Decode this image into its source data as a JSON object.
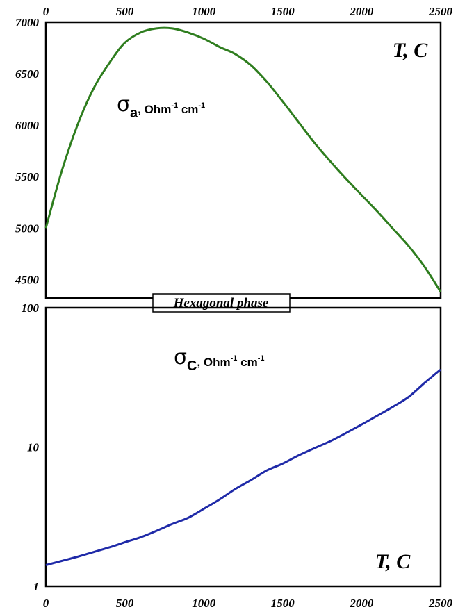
{
  "figure_label": "Hexagonal phase",
  "chart_data": [
    {
      "type": "line",
      "panel": "top",
      "series_label": {
        "symbol": "σ",
        "subscript": "a",
        "unit": ", Ohm",
        "sup1": "-1",
        "unit2": " cm",
        "sup2": "-1"
      },
      "xlabel": "T, C",
      "x_ticks": [
        "0",
        "500",
        "1000",
        "1500",
        "2000",
        "2500"
      ],
      "y_ticks": [
        "4500",
        "5000",
        "5500",
        "6000",
        "6500",
        "7000"
      ],
      "xlim": [
        0,
        2500
      ],
      "ylim": [
        4320,
        7000
      ],
      "y_scale": "linear",
      "color": "#2e7d1e",
      "x": [
        0,
        100,
        200,
        300,
        400,
        500,
        600,
        700,
        800,
        900,
        1000,
        1100,
        1200,
        1300,
        1400,
        1500,
        1600,
        1700,
        1800,
        1900,
        2000,
        2100,
        2200,
        2300,
        2400,
        2500
      ],
      "y": [
        5000,
        5550,
        6000,
        6350,
        6600,
        6800,
        6900,
        6940,
        6940,
        6900,
        6840,
        6760,
        6690,
        6580,
        6420,
        6230,
        6030,
        5830,
        5650,
        5480,
        5320,
        5160,
        4990,
        4820,
        4620,
        4380
      ]
    },
    {
      "type": "line",
      "panel": "bottom",
      "series_label": {
        "symbol": "σ",
        "subscript": "C",
        "unit": ", Ohm",
        "sup1": "-1",
        "unit2": " cm",
        "sup2": "-1"
      },
      "xlabel": "T, C",
      "x_ticks": [
        "0",
        "500",
        "1000",
        "1500",
        "2000",
        "2500"
      ],
      "y_ticks": [
        "1",
        "10",
        "100"
      ],
      "xlim": [
        0,
        2500
      ],
      "ylim": [
        1,
        100
      ],
      "y_scale": "log",
      "color": "#1f2aa8",
      "x": [
        0,
        100,
        200,
        300,
        400,
        500,
        600,
        700,
        800,
        900,
        1000,
        1100,
        1200,
        1300,
        1400,
        1500,
        1600,
        1700,
        1800,
        1900,
        2000,
        2100,
        2200,
        2300,
        2400,
        2500
      ],
      "y": [
        1.42,
        1.52,
        1.63,
        1.76,
        1.9,
        2.07,
        2.25,
        2.5,
        2.8,
        3.1,
        3.6,
        4.2,
        5.0,
        5.8,
        6.8,
        7.6,
        8.7,
        9.8,
        11.0,
        12.6,
        14.5,
        16.8,
        19.5,
        23.0,
        29.0,
        36.0
      ]
    }
  ]
}
